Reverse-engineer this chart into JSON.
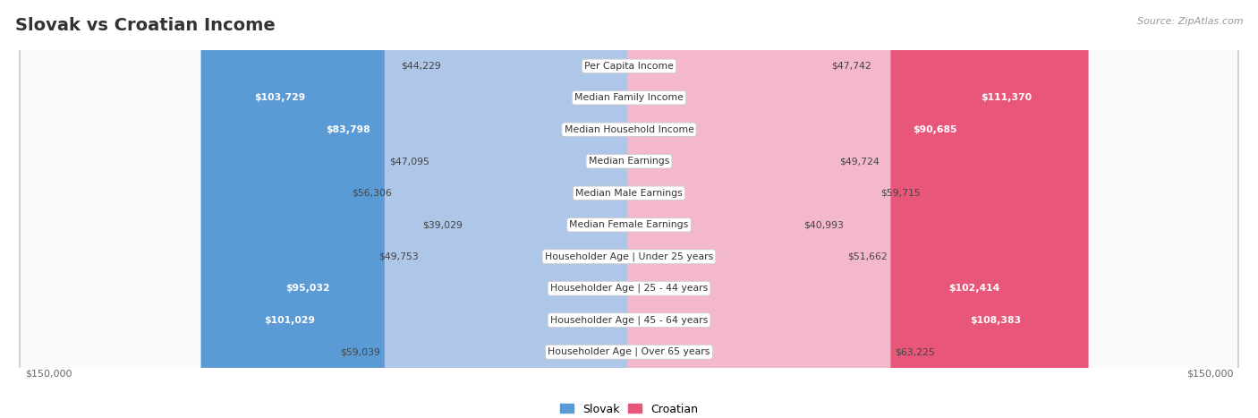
{
  "title": "Slovak vs Croatian Income",
  "source": "Source: ZipAtlas.com",
  "categories": [
    "Per Capita Income",
    "Median Family Income",
    "Median Household Income",
    "Median Earnings",
    "Median Male Earnings",
    "Median Female Earnings",
    "Householder Age | Under 25 years",
    "Householder Age | 25 - 44 years",
    "Householder Age | 45 - 64 years",
    "Householder Age | Over 65 years"
  ],
  "slovak_values": [
    44229,
    103729,
    83798,
    47095,
    56306,
    39029,
    49753,
    95032,
    101029,
    59039
  ],
  "croatian_values": [
    47742,
    111370,
    90685,
    49724,
    59715,
    40993,
    51662,
    102414,
    108383,
    63225
  ],
  "slovak_labels": [
    "$44,229",
    "$103,729",
    "$83,798",
    "$47,095",
    "$56,306",
    "$39,029",
    "$49,753",
    "$95,032",
    "$101,029",
    "$59,039"
  ],
  "croatian_labels": [
    "$47,742",
    "$111,370",
    "$90,685",
    "$49,724",
    "$59,715",
    "$40,993",
    "$51,662",
    "$102,414",
    "$108,383",
    "$63,225"
  ],
  "slovak_color_light": "#aec6e8",
  "slovak_color_dark": "#5b9bd5",
  "croatian_color_light": "#f4b8cc",
  "croatian_color_dark": "#e8567a",
  "dark_threshold": 70000,
  "max_value": 150000,
  "background_color": "#ffffff",
  "row_colors": [
    "#f0f0f0",
    "#fafafa"
  ],
  "legend_slovak": "Slovak",
  "legend_croatian": "Croatian",
  "xlabel_left": "$150,000",
  "xlabel_right": "$150,000",
  "title_fontsize": 14,
  "label_fontsize": 7.8,
  "value_fontsize": 7.8
}
